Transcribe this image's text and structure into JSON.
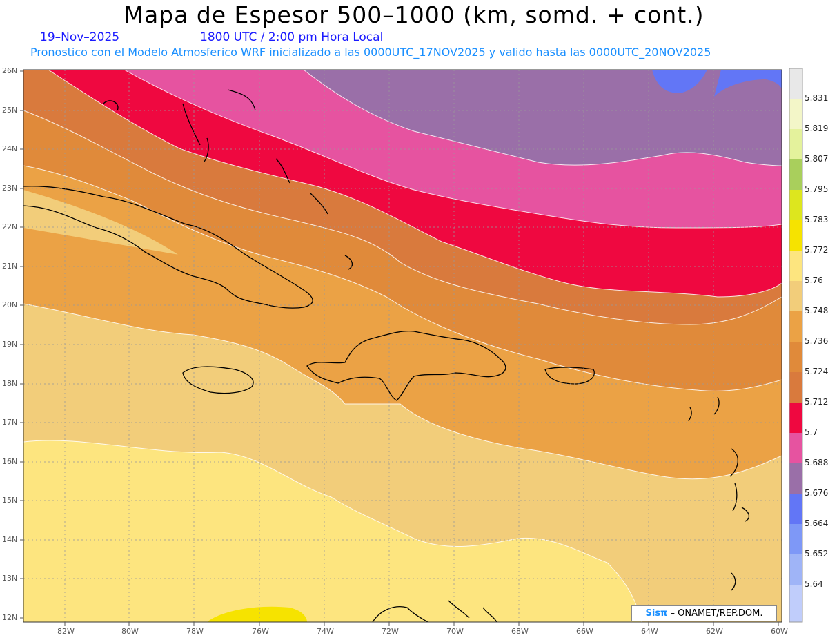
{
  "header": {
    "title": "Mapa de Espesor 500–1000 (km, somd. + cont.)",
    "date": "19–Nov–2025",
    "time": "1800 UTC / 2:00 pm Hora Local",
    "model_info": "Pronostico con el Modelo Atmosferico WRF inicializado a las 0000UTC_17NOV2025 y valido hasta las  0000UTC_20NOV2025"
  },
  "credit": {
    "brand": "Sisπ",
    "org": " – ONAMET/REP.DOM."
  },
  "lat_labels": [
    "26N",
    "25N",
    "24N",
    "23N",
    "22N",
    "21N",
    "20N",
    "19N",
    "18N",
    "17N",
    "16N",
    "15N",
    "14N",
    "13N",
    "12N"
  ],
  "lon_labels": [
    "82W",
    "80W",
    "78W",
    "76W",
    "74W",
    "72W",
    "70W",
    "68W",
    "66W",
    "64W",
    "62W",
    "60W"
  ],
  "colorbar": {
    "labels": [
      "5.831",
      "5.819",
      "5.807",
      "5.795",
      "5.783",
      "5.772",
      "5.76",
      "5.748",
      "5.736",
      "5.724",
      "5.712",
      "5.7",
      "5.688",
      "5.676",
      "5.664",
      "5.652",
      "5.64"
    ],
    "colors": [
      "#e8e8e8",
      "#f3f6c8",
      "#e4f29c",
      "#a9cf5c",
      "#dde61e",
      "#f6e300",
      "#fde57f",
      "#f2cd7a",
      "#eba245",
      "#e08a3a",
      "#d97a3d",
      "#ef0840",
      "#e653a0",
      "#9a6fa8",
      "#6276f6",
      "#7e98f7",
      "#9fb4f7",
      "#c0cdfb"
    ]
  }
}
